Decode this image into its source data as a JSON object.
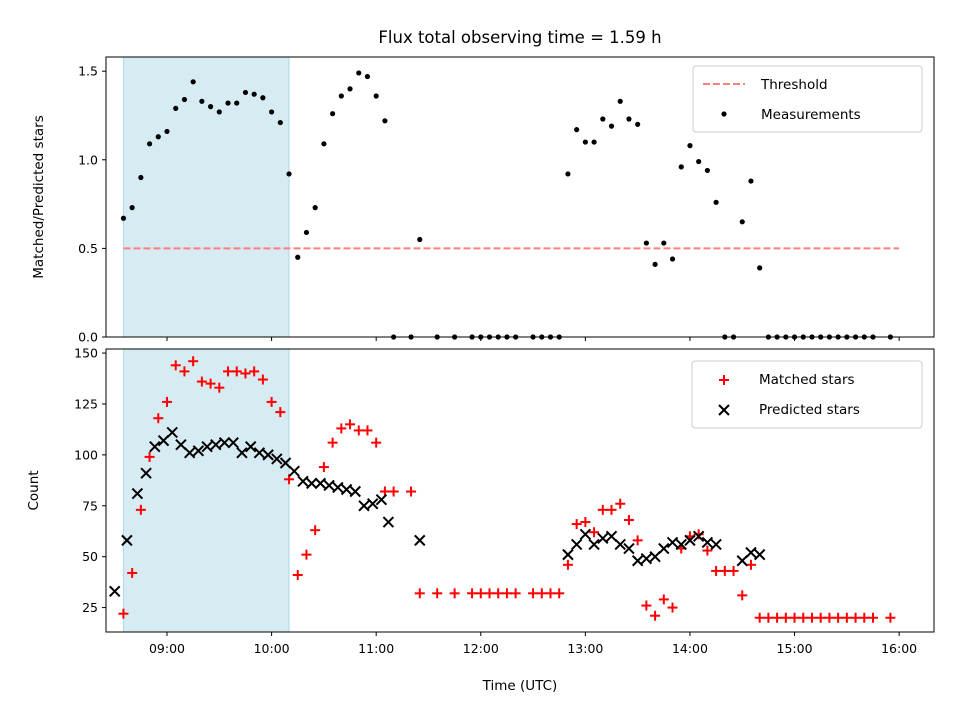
{
  "chart_data": [
    {
      "type": "scatter",
      "title": "Flux total observing time = 1.59 h",
      "xlabel": "",
      "ylabel": "Matched/Predicted stars",
      "xlim": [
        "08:25",
        "16:20"
      ],
      "ylim": [
        0,
        1.58
      ],
      "yticks": [
        0.0,
        0.5,
        1.0,
        1.5
      ],
      "ytick_labels": [
        "0.0",
        "0.5",
        "1.0",
        "1.5"
      ],
      "shaded_span": [
        "08:35",
        "10:10"
      ],
      "threshold": {
        "name": "Threshold",
        "value": 0.5,
        "x_range": [
          "08:35",
          "16:00"
        ],
        "color": "#ff7f7f",
        "style": "dashed"
      },
      "series": [
        {
          "name": "Measurements",
          "color": "#000000",
          "marker": "dot",
          "points": [
            [
              "08:35",
              0.67
            ],
            [
              "08:40",
              0.73
            ],
            [
              "08:45",
              0.9
            ],
            [
              "08:50",
              1.09
            ],
            [
              "08:55",
              1.13
            ],
            [
              "09:00",
              1.16
            ],
            [
              "09:05",
              1.29
            ],
            [
              "09:10",
              1.34
            ],
            [
              "09:15",
              1.44
            ],
            [
              "09:20",
              1.33
            ],
            [
              "09:25",
              1.3
            ],
            [
              "09:30",
              1.27
            ],
            [
              "09:35",
              1.32
            ],
            [
              "09:40",
              1.32
            ],
            [
              "09:45",
              1.38
            ],
            [
              "09:50",
              1.37
            ],
            [
              "09:55",
              1.35
            ],
            [
              "10:00",
              1.27
            ],
            [
              "10:05",
              1.21
            ],
            [
              "10:10",
              0.92
            ],
            [
              "10:15",
              0.45
            ],
            [
              "10:20",
              0.59
            ],
            [
              "10:25",
              0.73
            ],
            [
              "10:30",
              1.09
            ],
            [
              "10:35",
              1.26
            ],
            [
              "10:40",
              1.36
            ],
            [
              "10:45",
              1.4
            ],
            [
              "10:50",
              1.49
            ],
            [
              "10:55",
              1.47
            ],
            [
              "11:00",
              1.36
            ],
            [
              "11:05",
              1.22
            ],
            [
              "11:10",
              0.0
            ],
            [
              "11:20",
              0.0
            ],
            [
              "11:25",
              0.55
            ],
            [
              "11:35",
              0.0
            ],
            [
              "11:45",
              0.0
            ],
            [
              "11:55",
              0.0
            ],
            [
              "12:00",
              0.0
            ],
            [
              "12:05",
              0.0
            ],
            [
              "12:10",
              0.0
            ],
            [
              "12:15",
              0.0
            ],
            [
              "12:20",
              0.0
            ],
            [
              "12:30",
              0.0
            ],
            [
              "12:35",
              0.0
            ],
            [
              "12:40",
              0.0
            ],
            [
              "12:45",
              0.0
            ],
            [
              "12:50",
              0.92
            ],
            [
              "12:55",
              1.17
            ],
            [
              "13:00",
              1.1
            ],
            [
              "13:05",
              1.1
            ],
            [
              "13:10",
              1.23
            ],
            [
              "13:15",
              1.19
            ],
            [
              "13:20",
              1.33
            ],
            [
              "13:25",
              1.23
            ],
            [
              "13:30",
              1.2
            ],
            [
              "13:35",
              0.53
            ],
            [
              "13:40",
              0.41
            ],
            [
              "13:45",
              0.53
            ],
            [
              "13:50",
              0.44
            ],
            [
              "13:55",
              0.96
            ],
            [
              "14:00",
              1.08
            ],
            [
              "14:05",
              0.99
            ],
            [
              "14:10",
              0.94
            ],
            [
              "14:15",
              0.76
            ],
            [
              "14:20",
              0.0
            ],
            [
              "14:25",
              0.0
            ],
            [
              "14:30",
              0.65
            ],
            [
              "14:35",
              0.88
            ],
            [
              "14:40",
              0.39
            ],
            [
              "14:45",
              0.0
            ],
            [
              "14:50",
              0.0
            ],
            [
              "14:55",
              0.0
            ],
            [
              "15:00",
              0.0
            ],
            [
              "15:05",
              0.0
            ],
            [
              "15:10",
              0.0
            ],
            [
              "15:15",
              0.0
            ],
            [
              "15:20",
              0.0
            ],
            [
              "15:25",
              0.0
            ],
            [
              "15:30",
              0.0
            ],
            [
              "15:35",
              0.0
            ],
            [
              "15:40",
              0.0
            ],
            [
              "15:45",
              0.0
            ],
            [
              "15:55",
              0.0
            ]
          ]
        }
      ],
      "legend": {
        "placement": "top-right",
        "entries": [
          "Threshold",
          "Measurements"
        ]
      },
      "grid": false
    },
    {
      "type": "scatter",
      "title": "",
      "xlabel": "Time (UTC)",
      "ylabel": "Count",
      "xlim": [
        "08:25",
        "16:20"
      ],
      "ylim": [
        13,
        152
      ],
      "yticks": [
        25,
        50,
        75,
        100,
        125,
        150
      ],
      "ytick_labels": [
        "25",
        "50",
        "75",
        "100",
        "125",
        "150"
      ],
      "xticks": [
        "09:00",
        "10:00",
        "11:00",
        "12:00",
        "13:00",
        "14:00",
        "15:00",
        "16:00"
      ],
      "xtick_labels": [
        "09:00",
        "10:00",
        "11:00",
        "12:00",
        "13:00",
        "14:00",
        "15:00",
        "16:00"
      ],
      "shaded_span": [
        "08:35",
        "10:10"
      ],
      "series": [
        {
          "name": "Matched stars",
          "color": "#ff0000",
          "marker": "plus",
          "points": [
            [
              "08:35",
              22
            ],
            [
              "08:40",
              42
            ],
            [
              "08:45",
              73
            ],
            [
              "08:50",
              99
            ],
            [
              "08:55",
              118
            ],
            [
              "09:00",
              126
            ],
            [
              "09:05",
              144
            ],
            [
              "09:10",
              141
            ],
            [
              "09:15",
              146
            ],
            [
              "09:20",
              136
            ],
            [
              "09:25",
              135
            ],
            [
              "09:30",
              133
            ],
            [
              "09:35",
              141
            ],
            [
              "09:40",
              141
            ],
            [
              "09:45",
              140
            ],
            [
              "09:50",
              141
            ],
            [
              "09:55",
              137
            ],
            [
              "10:00",
              126
            ],
            [
              "10:05",
              121
            ],
            [
              "10:10",
              88
            ],
            [
              "10:15",
              41
            ],
            [
              "10:20",
              51
            ],
            [
              "10:25",
              63
            ],
            [
              "10:30",
              94
            ],
            [
              "10:35",
              106
            ],
            [
              "10:40",
              113
            ],
            [
              "10:45",
              115
            ],
            [
              "10:50",
              112
            ],
            [
              "10:55",
              112
            ],
            [
              "11:00",
              106
            ],
            [
              "11:05",
              82
            ],
            [
              "11:10",
              82
            ],
            [
              "11:20",
              82
            ],
            [
              "11:25",
              32
            ],
            [
              "11:35",
              32
            ],
            [
              "11:45",
              32
            ],
            [
              "11:55",
              32
            ],
            [
              "12:00",
              32
            ],
            [
              "12:05",
              32
            ],
            [
              "12:10",
              32
            ],
            [
              "12:15",
              32
            ],
            [
              "12:20",
              32
            ],
            [
              "12:30",
              32
            ],
            [
              "12:35",
              32
            ],
            [
              "12:40",
              32
            ],
            [
              "12:45",
              32
            ],
            [
              "12:50",
              46
            ],
            [
              "12:55",
              66
            ],
            [
              "13:00",
              67
            ],
            [
              "13:05",
              62
            ],
            [
              "13:10",
              73
            ],
            [
              "13:15",
              73
            ],
            [
              "13:20",
              76
            ],
            [
              "13:25",
              68
            ],
            [
              "13:30",
              58
            ],
            [
              "13:35",
              26
            ],
            [
              "13:40",
              21
            ],
            [
              "13:45",
              29
            ],
            [
              "13:50",
              25
            ],
            [
              "13:55",
              54
            ],
            [
              "14:00",
              60
            ],
            [
              "14:05",
              61
            ],
            [
              "14:10",
              53
            ],
            [
              "14:15",
              43
            ],
            [
              "14:20",
              43
            ],
            [
              "14:25",
              43
            ],
            [
              "14:30",
              31
            ],
            [
              "14:35",
              46
            ],
            [
              "14:40",
              20
            ],
            [
              "14:45",
              20
            ],
            [
              "14:50",
              20
            ],
            [
              "14:55",
              20
            ],
            [
              "15:00",
              20
            ],
            [
              "15:05",
              20
            ],
            [
              "15:10",
              20
            ],
            [
              "15:15",
              20
            ],
            [
              "15:20",
              20
            ],
            [
              "15:25",
              20
            ],
            [
              "15:30",
              20
            ],
            [
              "15:35",
              20
            ],
            [
              "15:40",
              20
            ],
            [
              "15:45",
              20
            ],
            [
              "15:55",
              20
            ]
          ]
        },
        {
          "name": "Predicted stars",
          "color": "#000000",
          "marker": "x",
          "points": [
            [
              "08:30",
              33
            ],
            [
              "08:37",
              58
            ],
            [
              "08:43",
              81
            ],
            [
              "08:48",
              91
            ],
            [
              "08:53",
              104
            ],
            [
              "08:58",
              107
            ],
            [
              "09:03",
              111
            ],
            [
              "09:08",
              105
            ],
            [
              "09:13",
              101
            ],
            [
              "09:18",
              102
            ],
            [
              "09:23",
              104
            ],
            [
              "09:28",
              105
            ],
            [
              "09:33",
              106
            ],
            [
              "09:38",
              106
            ],
            [
              "09:43",
              101
            ],
            [
              "09:48",
              104
            ],
            [
              "09:53",
              101
            ],
            [
              "09:58",
              100
            ],
            [
              "10:03",
              98
            ],
            [
              "10:08",
              96
            ],
            [
              "10:13",
              92
            ],
            [
              "10:18",
              87
            ],
            [
              "10:23",
              86
            ],
            [
              "10:28",
              86
            ],
            [
              "10:33",
              85
            ],
            [
              "10:38",
              84
            ],
            [
              "10:43",
              83
            ],
            [
              "10:48",
              82
            ],
            [
              "10:53",
              75
            ],
            [
              "10:58",
              76
            ],
            [
              "11:03",
              78
            ],
            [
              "11:07",
              67
            ],
            [
              "11:25",
              58
            ],
            [
              "12:50",
              51
            ],
            [
              "12:55",
              56
            ],
            [
              "13:00",
              61
            ],
            [
              "13:05",
              56
            ],
            [
              "13:10",
              59
            ],
            [
              "13:15",
              60
            ],
            [
              "13:20",
              56
            ],
            [
              "13:25",
              54
            ],
            [
              "13:30",
              48
            ],
            [
              "13:35",
              49
            ],
            [
              "13:40",
              50
            ],
            [
              "13:45",
              54
            ],
            [
              "13:50",
              57
            ],
            [
              "13:55",
              56
            ],
            [
              "14:00",
              58
            ],
            [
              "14:05",
              60
            ],
            [
              "14:10",
              57
            ],
            [
              "14:15",
              56
            ],
            [
              "14:30",
              48
            ],
            [
              "14:35",
              52
            ],
            [
              "14:40",
              51
            ]
          ]
        }
      ],
      "legend": {
        "placement": "top-right",
        "entries": [
          "Matched stars",
          "Predicted stars"
        ]
      },
      "grid": false
    }
  ]
}
